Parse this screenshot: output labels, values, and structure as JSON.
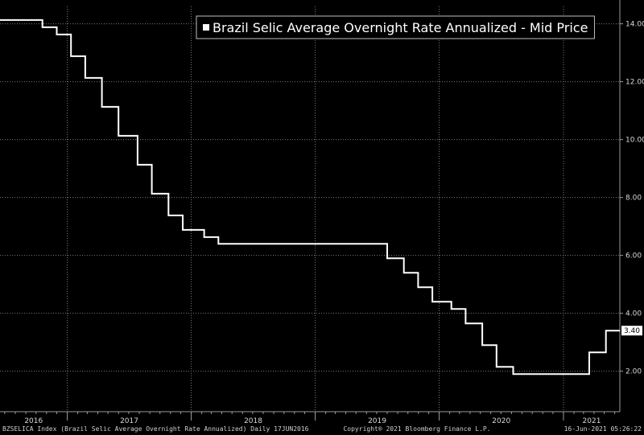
{
  "chart_data": {
    "type": "line",
    "step": true,
    "title": "",
    "xlabel": "",
    "ylabel": "",
    "legend": {
      "position": "top-right",
      "entries": [
        "Brazil Selic Average Overnight Rate Annualized - Mid Price"
      ]
    },
    "grid": true,
    "ylim": [
      0.6,
      14.6
    ],
    "xlim": [
      "2016-06-17",
      "2021-06-16"
    ],
    "y_ticks": [
      "2.00",
      "4.00",
      "6.00",
      "8.00",
      "10.00",
      "12.00",
      "14.00"
    ],
    "x_ticks": [
      "2016",
      "2017",
      "2018",
      "2019",
      "2020",
      "2021"
    ],
    "last_value_label": "3.40",
    "series": [
      {
        "name": "Brazil Selic Average Overnight Rate Annualized - Mid Price",
        "color": "#ffffff",
        "x": [
          "2016-06-17",
          "2016-10-20",
          "2016-12-01",
          "2017-01-12",
          "2017-02-23",
          "2017-04-13",
          "2017-06-01",
          "2017-07-27",
          "2017-09-07",
          "2017-10-26",
          "2017-12-07",
          "2018-02-08",
          "2018-03-22",
          "2019-08-01",
          "2019-09-19",
          "2019-10-31",
          "2019-12-12",
          "2020-02-06",
          "2020-03-19",
          "2020-05-07",
          "2020-06-18",
          "2020-08-06",
          "2021-03-18",
          "2021-05-06",
          "2021-06-16"
        ],
        "values": [
          14.13,
          13.88,
          13.63,
          12.88,
          12.13,
          11.13,
          10.13,
          9.13,
          8.13,
          7.38,
          6.88,
          6.63,
          6.4,
          5.9,
          5.4,
          4.9,
          4.4,
          4.15,
          3.65,
          2.9,
          2.15,
          1.9,
          2.65,
          3.4,
          3.4
        ]
      }
    ]
  },
  "footer": {
    "left": "BZSELICA Index (Brazil Selic Average Overnight Rate Annualized)  Daily 17JUN2016",
    "center": "Copyright® 2021 Bloomberg Finance L.P.",
    "right": "16-Jun-2021 05:26:22"
  },
  "colors": {
    "background": "#000000",
    "line": "#ffffff",
    "grid": "#7a7a7a",
    "axis": "#9a9a9a",
    "text": "#d8d8d8"
  }
}
